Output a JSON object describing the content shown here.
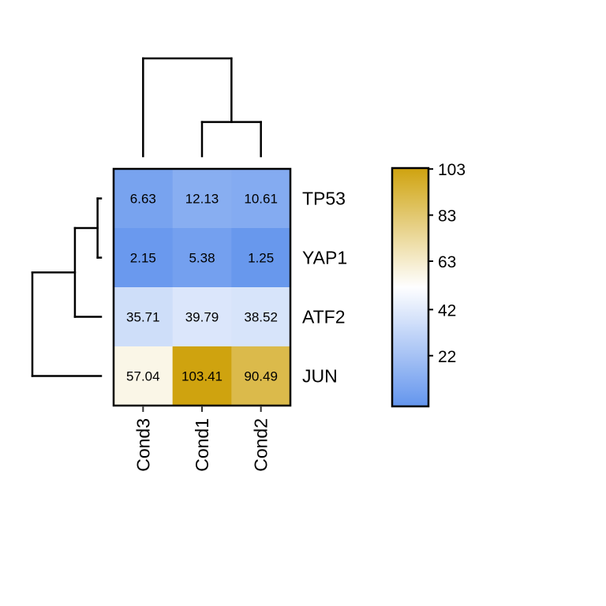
{
  "chart_data": {
    "type": "heatmap",
    "title": "",
    "columns": [
      "Cond3",
      "Cond1",
      "Cond2"
    ],
    "rows": [
      "TP53",
      "YAP1",
      "ATF2",
      "JUN"
    ],
    "values": [
      [
        6.63,
        12.13,
        10.61
      ],
      [
        2.15,
        5.38,
        1.25
      ],
      [
        35.71,
        39.79,
        38.52
      ],
      [
        57.04,
        103.41,
        90.49
      ]
    ],
    "cell_labels": [
      [
        "6.63",
        "12.13",
        "10.61"
      ],
      [
        "2.15",
        "5.38",
        "1.25"
      ],
      [
        "35.71",
        "39.79",
        "38.52"
      ],
      [
        "57.04",
        "103.41",
        "90.49"
      ]
    ],
    "color_scale": {
      "low": "#6495ED",
      "mid": "#FFFFFF",
      "high": "#CFA30F",
      "min": 0,
      "mid_value": 52,
      "max": 103.41
    },
    "colorbar": {
      "range": [
        0,
        103.41
      ],
      "ticks": [
        22,
        42,
        63,
        83,
        103
      ],
      "tick_labels": [
        "22",
        "42",
        "63",
        "83",
        "103"
      ]
    },
    "column_dendrogram": {
      "merges": [
        {
          "left": "Cond1",
          "right": "Cond2",
          "height": 0.35
        },
        {
          "left": "Cond3",
          "right": "Cond1+Cond2",
          "height": 1.0
        }
      ]
    },
    "row_dendrogram": {
      "merges": [
        {
          "left": "TP53",
          "right": "YAP1",
          "height": 0.05
        },
        {
          "left": "TP53+YAP1",
          "right": "ATF2",
          "height": 0.38
        },
        {
          "left": "TP53+YAP1+ATF2",
          "right": "JUN",
          "height": 1.0
        }
      ]
    }
  }
}
